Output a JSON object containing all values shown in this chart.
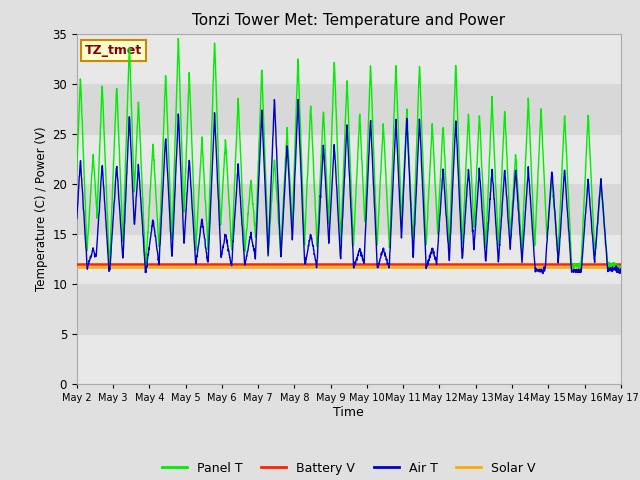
{
  "title": "Tonzi Tower Met: Temperature and Power",
  "xlabel": "Time",
  "ylabel": "Temperature (C) / Power (V)",
  "ylim": [
    0,
    35
  ],
  "yticks": [
    0,
    5,
    10,
    15,
    20,
    25,
    30,
    35
  ],
  "annotation_text": "TZ_tmet",
  "annotation_bg": "#ffffcc",
  "annotation_border": "#cc8800",
  "annotation_text_color": "#880000",
  "legend_entries": [
    "Panel T",
    "Battery V",
    "Air T",
    "Solar V"
  ],
  "panel_color": "#00ee00",
  "air_color": "#0000cc",
  "battery_color": "#ff2200",
  "solar_color": "#ffaa00",
  "battery_v": 12.0,
  "solar_v": 11.7,
  "x_start": 2,
  "x_end": 17,
  "xtick_labels": [
    "May 2",
    "May 3",
    "May 4",
    "May 5",
    "May 6",
    "May 7",
    "May 8",
    "May 9",
    "May 10",
    "May 11",
    "May 12",
    "May 13",
    "May 14",
    "May 15",
    "May 16",
    "May 17"
  ],
  "xtick_positions": [
    2,
    3,
    4,
    5,
    6,
    7,
    8,
    9,
    10,
    11,
    12,
    13,
    14,
    15,
    16,
    17
  ],
  "fig_bg": "#e0e0e0",
  "ax_bg": "#f0f0f0",
  "grid_color": "#cccccc",
  "panel_peaks_x": [
    2.1,
    2.45,
    2.7,
    3.1,
    3.45,
    3.7,
    4.1,
    4.45,
    4.8,
    5.1,
    5.45,
    5.8,
    6.1,
    6.45,
    6.8,
    7.1,
    7.45,
    7.8,
    8.1,
    8.45,
    8.8,
    9.1,
    9.45,
    9.8,
    10.1,
    10.45,
    10.8,
    11.1,
    11.45,
    11.8,
    12.1,
    12.45,
    12.8,
    13.1,
    13.45,
    13.8,
    14.1,
    14.45,
    14.8,
    15.1,
    15.45,
    15.8,
    16.1,
    16.45,
    16.8
  ],
  "panel_peak_vals": [
    31,
    23,
    30,
    30,
    34,
    28.5,
    24,
    31,
    34.5,
    31,
    24.5,
    34.5,
    24.5,
    28.5,
    20.5,
    31.5,
    22.5,
    25.5,
    32.5,
    28,
    27.5,
    32.5,
    30.5,
    27,
    32,
    26,
    32,
    27.5,
    32,
    26,
    26,
    32,
    27,
    27,
    28.5,
    27.5,
    23,
    28.5,
    27.5,
    20.5,
    27,
    12,
    27,
    20,
    12
  ],
  "air_peaks_x": [
    2.1,
    2.45,
    2.7,
    3.1,
    3.45,
    3.7,
    4.1,
    4.45,
    4.8,
    5.1,
    5.45,
    5.8,
    6.1,
    6.45,
    6.8,
    7.1,
    7.45,
    7.8,
    8.1,
    8.45,
    8.8,
    9.1,
    9.45,
    9.8,
    10.1,
    10.45,
    10.8,
    11.1,
    11.45,
    11.8,
    12.1,
    12.45,
    12.8,
    13.1,
    13.45,
    13.8,
    14.1,
    14.45,
    14.8,
    15.1,
    15.45,
    15.8,
    16.1,
    16.45,
    16.8
  ],
  "air_peak_vals": [
    22.5,
    13.5,
    22,
    22,
    27,
    22,
    16.5,
    24.8,
    27,
    22.5,
    16.5,
    27,
    15,
    22,
    15,
    27.5,
    28.5,
    24,
    28.5,
    15,
    24,
    24,
    26,
    13.5,
    26.5,
    13.5,
    26.5,
    26.5,
    26.5,
    13.5,
    21.5,
    26.5,
    21.5,
    21.5,
    21.5,
    21.5,
    21.5,
    21.5,
    9.5,
    21.5,
    21.5,
    9.5,
    20.5,
    20.5,
    11.5
  ]
}
